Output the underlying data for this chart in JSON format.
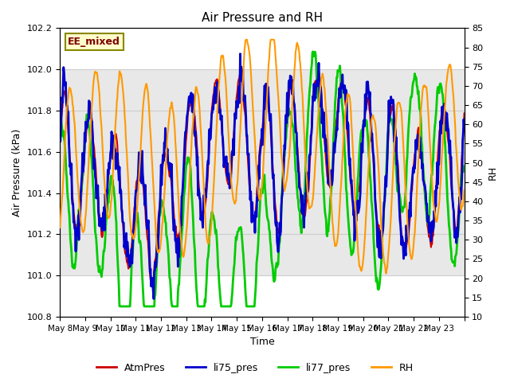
{
  "title": "Air Pressure and RH",
  "xlabel": "Time",
  "ylabel_left": "Air Pressure (kPa)",
  "ylabel_right": "RH",
  "annotation": "EE_mixed",
  "ylim_left": [
    100.8,
    102.2
  ],
  "ylim_right": [
    10,
    85
  ],
  "yticks_left": [
    100.8,
    101.0,
    101.2,
    101.4,
    101.6,
    101.8,
    102.0,
    102.2
  ],
  "yticks_right": [
    10,
    15,
    20,
    25,
    30,
    35,
    40,
    45,
    50,
    55,
    60,
    65,
    70,
    75,
    80,
    85
  ],
  "x_tick_positions": [
    0,
    1,
    2,
    3,
    4,
    5,
    6,
    7,
    8,
    9,
    10,
    11,
    12,
    13,
    14,
    15,
    16
  ],
  "x_labels": [
    "May 8",
    "May 9",
    "May 10",
    "May 11",
    "May 12",
    "May 13",
    "May 14",
    "May 15",
    "May 16",
    "May 17",
    "May 18",
    "May 19",
    "May 20",
    "May 21",
    "May 22",
    "May 23",
    ""
  ],
  "colors": {
    "AtmPres": "#cc0000",
    "li75_pres": "#0000cc",
    "li77_pres": "#00cc00",
    "RH": "#ff9900"
  },
  "linewidths": {
    "AtmPres": 1.5,
    "li75_pres": 2.0,
    "li77_pres": 2.0,
    "RH": 1.5
  },
  "bg_band": [
    101.0,
    102.0
  ],
  "bg_color": "#e8e8e8",
  "grid_color": "#cccccc"
}
